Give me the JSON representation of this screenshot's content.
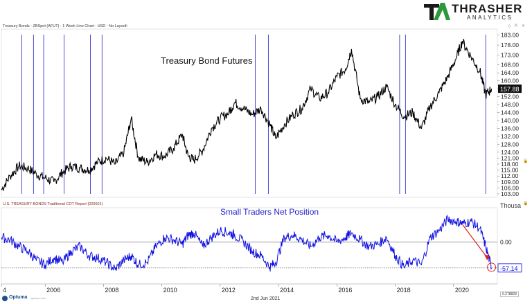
{
  "header": {
    "top_chart_info": "Treasury Bonds - ZBSpot (AFUT) - 1 Week Line Chart - USD - No Layout",
    "bottom_chart_info": "U.S. TREASURY BONDS Traditional COT Report (020601)"
  },
  "logo": {
    "name": "THRASHER",
    "sub": "ANALYTICS"
  },
  "footer": {
    "brand": "Optuma",
    "url": "optuma.com",
    "date": "2nd Jun 2021",
    "corner_value": "0.278828"
  },
  "icons": [
    "pencil-icon",
    "settings-icon",
    "expand-icon",
    "close-icon",
    "lock-icon"
  ],
  "colors": {
    "price_line": "#000000",
    "cot_line": "#1010e0",
    "cycle_lines": "#2020c8",
    "arrow": "#dd2222",
    "title_text": "#2222cc"
  },
  "chart_data": [
    {
      "type": "line",
      "title": "Treasury Bond Futures",
      "ylim": [
        103,
        185
      ],
      "y_ticks": [
        "103.00",
        "106.00",
        "109.00",
        "112.00",
        "115.00",
        "118.00",
        "121.00",
        "124.00",
        "128.00",
        "132.00",
        "136.00",
        "140.00",
        "144.00",
        "148.00",
        "152.00",
        "156.00",
        "160.00",
        "164.00",
        "168.00",
        "173.00",
        "178.00",
        "183.00"
      ],
      "last_value_label": "157.88",
      "series": [
        {
          "x": [
            2004.5,
            2004.8,
            2005.1,
            2005.4,
            2005.7,
            2006.0,
            2006.3,
            2006.6,
            2006.9,
            2007.2,
            2007.5,
            2007.8,
            2008.1,
            2008.4,
            2008.7,
            2008.95,
            2009.2,
            2009.5,
            2009.8,
            2010.1,
            2010.4,
            2010.7,
            2010.9,
            2011.1,
            2011.4,
            2011.7,
            2012.0,
            2012.3,
            2012.5,
            2012.8,
            2013.1,
            2013.4,
            2013.7,
            2013.9,
            2014.2,
            2014.5,
            2014.8,
            2015.1,
            2015.4,
            2015.7,
            2016.0,
            2016.3,
            2016.5,
            2016.8,
            2017.1,
            2017.4,
            2017.7,
            2018.0,
            2018.3,
            2018.6,
            2018.9,
            2019.2,
            2019.5,
            2019.8,
            2020.1,
            2020.3,
            2020.6,
            2020.9,
            2021.1,
            2021.3
          ],
          "values": [
            105,
            112,
            117,
            116,
            113,
            111,
            109,
            114,
            117,
            116,
            115,
            119,
            121,
            118,
            124,
            141,
            121,
            119,
            123,
            122,
            126,
            133,
            122,
            120,
            125,
            136,
            141,
            144,
            149,
            146,
            143,
            146,
            138,
            131,
            138,
            143,
            146,
            156,
            151,
            154,
            162,
            166,
            176,
            151,
            149,
            152,
            157,
            148,
            142,
            144,
            136,
            147,
            154,
            162,
            172,
            180,
            172,
            165,
            153,
            156
          ]
        }
      ]
    },
    {
      "type": "line",
      "title": "Small Traders Net Position",
      "y_ticks": [
        "0.00"
      ],
      "ylim": [
        -80,
        60
      ],
      "unit_label": "Thousa",
      "last_value_label": "-57.14",
      "x_ticks": [
        "4",
        "2006",
        "2008",
        "2010",
        "2012",
        "2014",
        "2016",
        "2018",
        "2020"
      ],
      "xlim": [
        2004.5,
        2021.5
      ],
      "series": [
        {
          "x": [
            2004.5,
            2004.8,
            2005.1,
            2005.4,
            2005.7,
            2006.0,
            2006.3,
            2006.6,
            2006.9,
            2007.2,
            2007.5,
            2007.8,
            2008.1,
            2008.4,
            2008.7,
            2008.95,
            2009.2,
            2009.5,
            2009.8,
            2010.1,
            2010.4,
            2010.7,
            2010.9,
            2011.1,
            2011.4,
            2011.7,
            2012.0,
            2012.3,
            2012.5,
            2012.8,
            2013.1,
            2013.4,
            2013.7,
            2013.9,
            2014.2,
            2014.5,
            2014.8,
            2015.1,
            2015.4,
            2015.7,
            2016.0,
            2016.3,
            2016.5,
            2016.8,
            2017.1,
            2017.4,
            2017.7,
            2018.0,
            2018.3,
            2018.6,
            2018.9,
            2019.2,
            2019.5,
            2019.8,
            2020.1,
            2020.3,
            2020.6,
            2020.9,
            2021.1,
            2021.3
          ],
          "values": [
            10,
            5,
            -10,
            -20,
            -40,
            -50,
            -35,
            -45,
            -20,
            -10,
            -30,
            -35,
            -45,
            -60,
            -40,
            -30,
            -50,
            -45,
            -10,
            10,
            5,
            -5,
            15,
            20,
            -10,
            10,
            25,
            20,
            15,
            0,
            -20,
            -30,
            -55,
            -45,
            10,
            15,
            5,
            -10,
            10,
            15,
            0,
            10,
            20,
            5,
            -10,
            -5,
            10,
            -30,
            -55,
            -40,
            -50,
            10,
            25,
            50,
            45,
            40,
            45,
            30,
            -10,
            -57
          ]
        }
      ]
    }
  ]
}
